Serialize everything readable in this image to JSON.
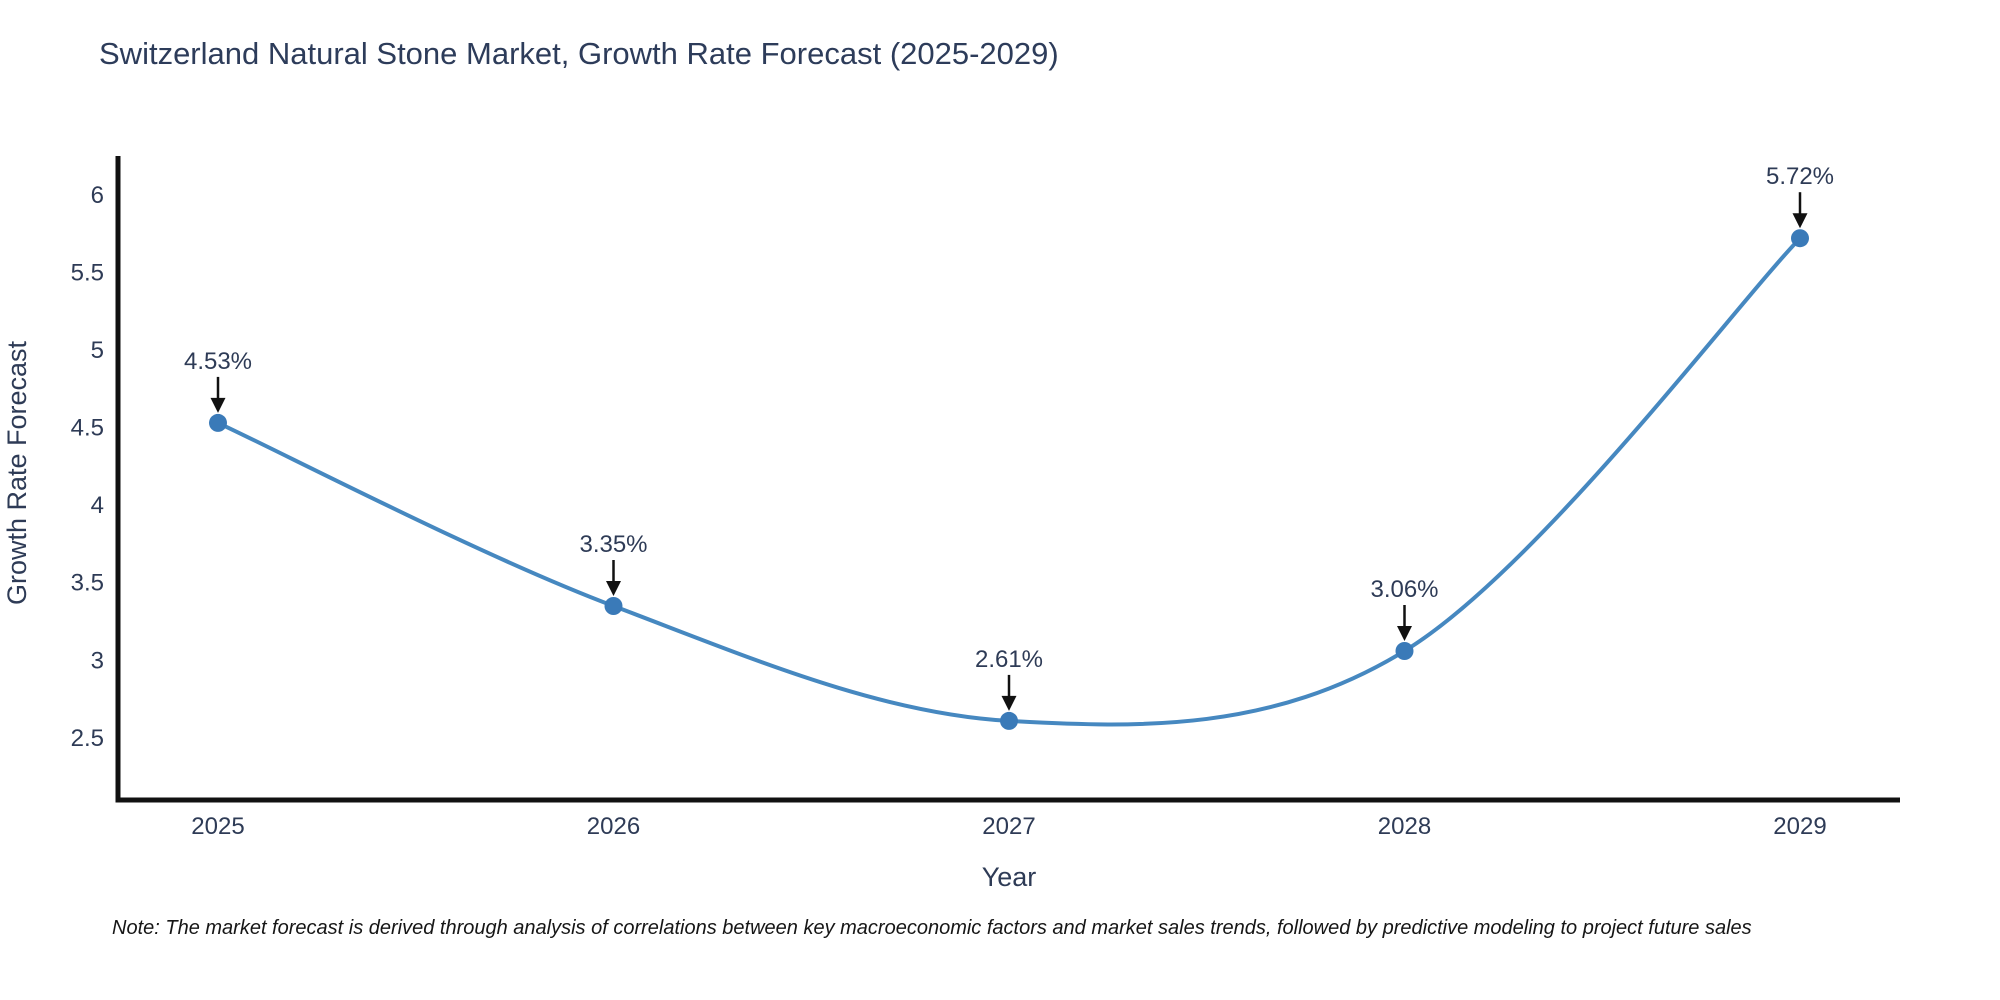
{
  "title": "Switzerland Natural Stone Market, Growth Rate Forecast (2025-2029)",
  "note": "Note: The market forecast is derived through analysis of correlations between key macroeconomic factors and market sales trends, followed by predictive modeling to project future sales",
  "chart_data": {
    "type": "line",
    "title": "Switzerland Natural Stone Market, Growth Rate Forecast (2025-2029)",
    "xlabel": "Year",
    "ylabel": "Growth Rate Forecast",
    "categories": [
      "2025",
      "2026",
      "2027",
      "2028",
      "2029"
    ],
    "values": [
      4.53,
      3.35,
      2.61,
      3.06,
      5.72
    ],
    "point_labels": [
      "4.53%",
      "3.35%",
      "2.61%",
      "3.06%",
      "5.72%"
    ],
    "yticks": [
      2.5,
      3,
      3.5,
      4,
      4.5,
      5,
      5.5,
      6
    ],
    "ylim": [
      2.1,
      6.25
    ],
    "line_shape": "spline",
    "grid": false,
    "legend": "none",
    "colors": {
      "line": "#4688c0",
      "marker": "#3a7ab8",
      "axis": "#111111",
      "text": "#2e3b56",
      "arrow": "#111111"
    }
  }
}
